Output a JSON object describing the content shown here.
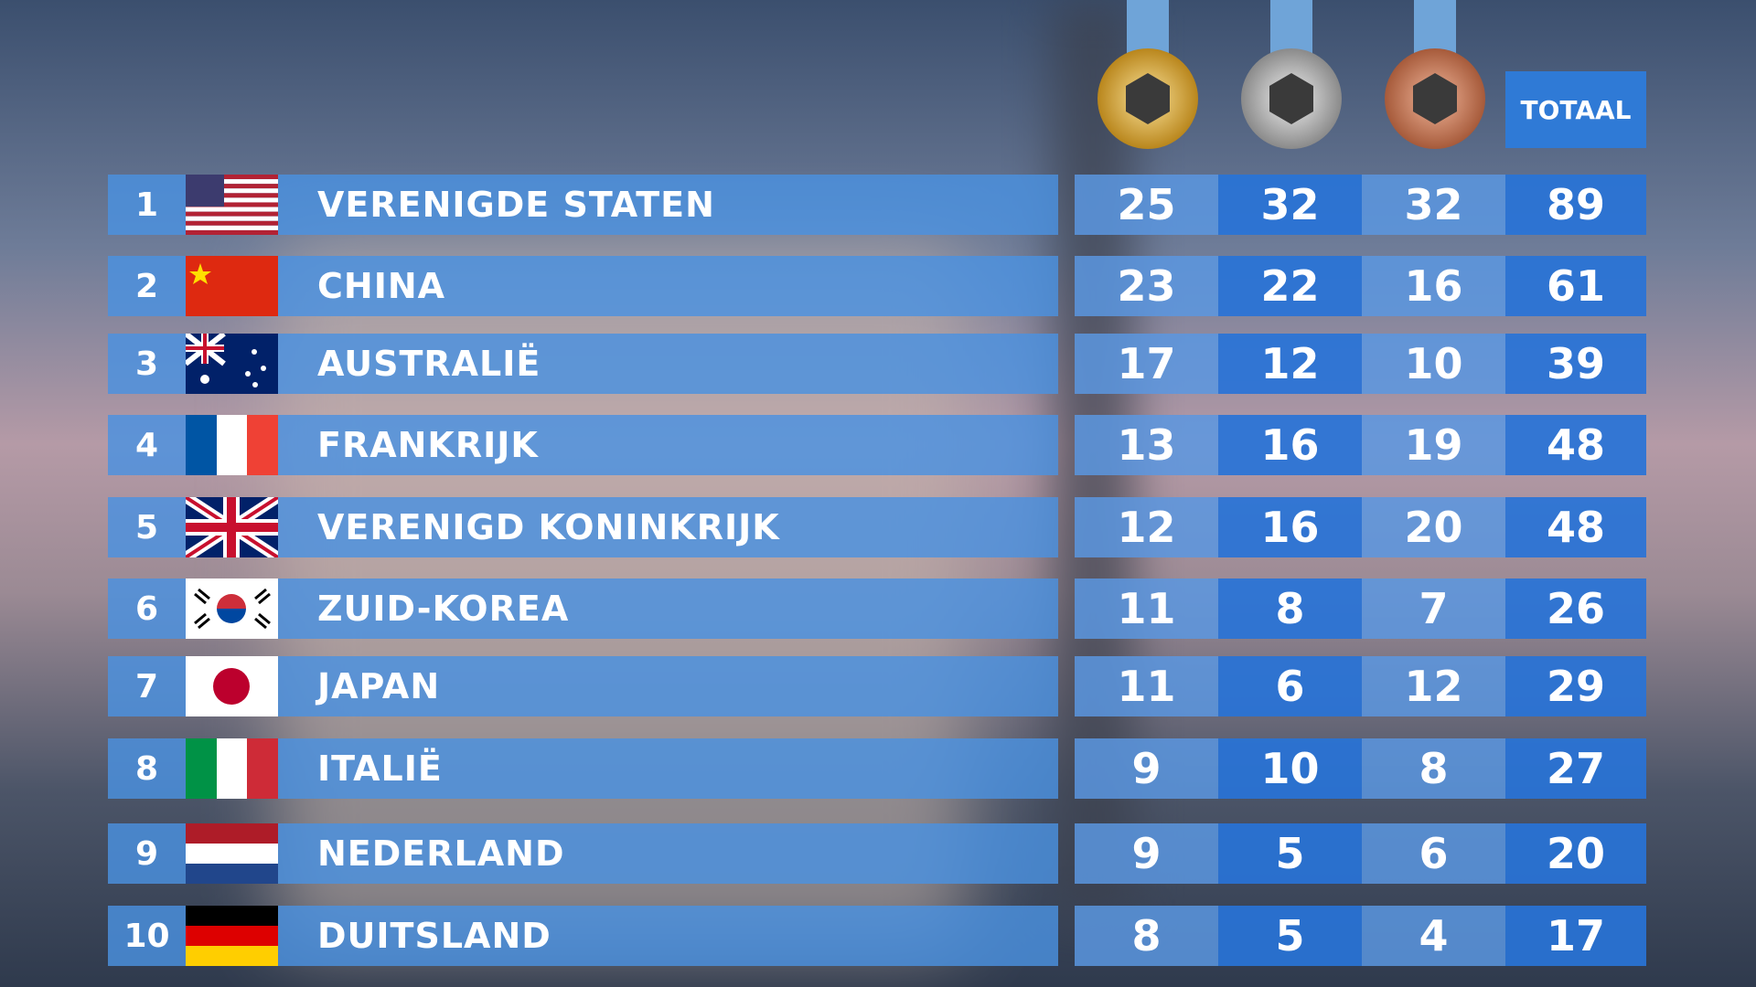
{
  "table": {
    "header": {
      "total": "TOTAAL"
    },
    "rows": [
      {
        "rank": 1,
        "country": "VERENIGDE STATEN",
        "gold": 25,
        "silver": 32,
        "bronze": 32,
        "total": 89
      },
      {
        "rank": 2,
        "country": "CHINA",
        "gold": 23,
        "silver": 22,
        "bronze": 16,
        "total": 61
      },
      {
        "rank": 3,
        "country": "AUSTRALIË",
        "gold": 17,
        "silver": 12,
        "bronze": 10,
        "total": 39
      },
      {
        "rank": 4,
        "country": "FRANKRIJK",
        "gold": 13,
        "silver": 16,
        "bronze": 19,
        "total": 48
      },
      {
        "rank": 5,
        "country": "VERENIGD KONINKRIJK",
        "gold": 12,
        "silver": 16,
        "bronze": 20,
        "total": 48
      },
      {
        "rank": 6,
        "country": "ZUID-KOREA",
        "gold": 11,
        "silver": 8,
        "bronze": 7,
        "total": 26
      },
      {
        "rank": 7,
        "country": "JAPAN",
        "gold": 11,
        "silver": 6,
        "bronze": 12,
        "total": 29
      },
      {
        "rank": 8,
        "country": "ITALIË",
        "gold": 9,
        "silver": 10,
        "bronze": 8,
        "total": 27
      },
      {
        "rank": 9,
        "country": "NEDERLAND",
        "gold": 9,
        "silver": 5,
        "bronze": 6,
        "total": 20
      },
      {
        "rank": 10,
        "country": "DUITSLAND",
        "gold": 8,
        "silver": 5,
        "bronze": 4,
        "total": 17
      }
    ]
  }
}
